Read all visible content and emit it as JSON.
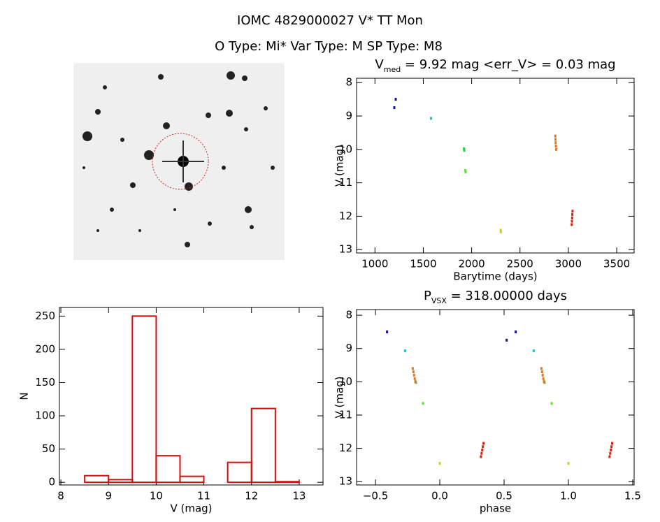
{
  "header": {
    "title": "IOMC 4829000027    V* TT Mon",
    "subtitle": "O Type: Mi*  Var Type: M  SP Type: M8"
  },
  "chart_data": [
    {
      "type": "scatter",
      "title": "V",
      "title_subscript": "med",
      "title_rest": " = 9.92 mag <err_V> = 0.03 mag",
      "x_label": "Barytime (days)",
      "y_label": "V (mag)",
      "xlim": [
        810,
        3680
      ],
      "xticks": [
        1000,
        1500,
        2000,
        2500,
        3000,
        3500
      ],
      "ylim": [
        7.87,
        13.1
      ],
      "yticks": [
        8,
        9,
        10,
        11,
        12,
        13
      ],
      "y_inverted": true,
      "series": [
        {
          "color": "#1010a0",
          "x": [
            1215,
            1200
          ],
          "values": [
            8.5,
            8.75
          ]
        },
        {
          "color": "#20c0e0",
          "x": [
            1580
          ],
          "values": [
            9.07
          ]
        },
        {
          "color": "#30d050",
          "x": [
            1920,
            1922,
            1925
          ],
          "values": [
            9.98,
            10.0,
            10.03
          ]
        },
        {
          "color": "#60e040",
          "x": [
            1935,
            1937
          ],
          "values": [
            10.63,
            10.68
          ]
        },
        {
          "color": "#d0d020",
          "x": [
            2300,
            2302
          ],
          "values": [
            12.42,
            12.47
          ]
        },
        {
          "color": "#e07820",
          "x": [
            2865,
            2867,
            2869,
            2871,
            2873
          ],
          "values": [
            9.6,
            9.7,
            9.8,
            9.9,
            10.0
          ]
        },
        {
          "color": "#e02010",
          "x": [
            3035,
            3037,
            3039,
            3041,
            3043
          ],
          "values": [
            12.25,
            12.15,
            12.05,
            11.95,
            11.85
          ]
        }
      ]
    },
    {
      "type": "histogram",
      "x_label": "V (mag)",
      "y_label": "N",
      "color": "#d01010",
      "bins": [
        8.5,
        9,
        9.5,
        10,
        10.5,
        11,
        11.5,
        12,
        12.5,
        13
      ],
      "values": [
        10,
        4,
        250,
        40,
        9,
        0,
        30,
        111,
        1
      ],
      "xlim": [
        7.97,
        13.5
      ],
      "xticks": [
        8,
        9,
        10,
        11,
        12,
        13
      ],
      "ylim": [
        -4,
        263
      ],
      "yticks": [
        0,
        50,
        100,
        150,
        200,
        250
      ]
    },
    {
      "type": "scatter",
      "title": "P",
      "title_subscript": "VSX",
      "title_rest": " = 318.00000 days",
      "x_label": "phase",
      "y_label": "V (mag)",
      "xlim": [
        -0.647,
        1.511
      ],
      "xticks": [
        -0.5,
        0.0,
        0.5,
        1.0,
        1.5
      ],
      "xtick_labels": [
        "−0.5",
        "0.0",
        "0.5",
        "1.0",
        "1.5"
      ],
      "ylim": [
        7.83,
        13.1
      ],
      "yticks": [
        8,
        9,
        10,
        11,
        12,
        13
      ],
      "y_inverted": true,
      "series": [
        {
          "color": "#1010a0",
          "x": [
            -0.41,
            0.59,
            0.52
          ],
          "values": [
            8.5,
            8.5,
            8.75
          ]
        },
        {
          "color": "#20c0e0",
          "x": [
            -0.27,
            0.73
          ],
          "values": [
            9.07,
            9.07
          ]
        },
        {
          "color": "#30d050",
          "x": [
            -0.19,
            -0.185,
            0.81,
            0.815
          ],
          "values": [
            9.98,
            10.02,
            9.98,
            10.02
          ]
        },
        {
          "color": "#60e040",
          "x": [
            -0.13,
            0.87
          ],
          "values": [
            10.65,
            10.65
          ]
        },
        {
          "color": "#d0d020",
          "x": [
            0.0,
            1.0
          ],
          "values": [
            12.45,
            12.45
          ]
        },
        {
          "color": "#e07820",
          "x": [
            -0.21,
            -0.205,
            -0.2,
            -0.195,
            -0.19,
            0.79,
            0.795,
            0.8,
            0.805,
            0.81
          ],
          "values": [
            9.6,
            9.7,
            9.8,
            9.9,
            10.0,
            9.6,
            9.7,
            9.8,
            9.9,
            10.0
          ]
        },
        {
          "color": "#e02010",
          "x": [
            0.32,
            0.325,
            0.33,
            0.335,
            0.34,
            1.32,
            1.325,
            1.33,
            1.335,
            1.34
          ],
          "values": [
            12.25,
            12.15,
            12.05,
            11.95,
            11.85,
            12.25,
            12.15,
            12.05,
            11.95,
            11.85
          ]
        }
      ]
    }
  ]
}
